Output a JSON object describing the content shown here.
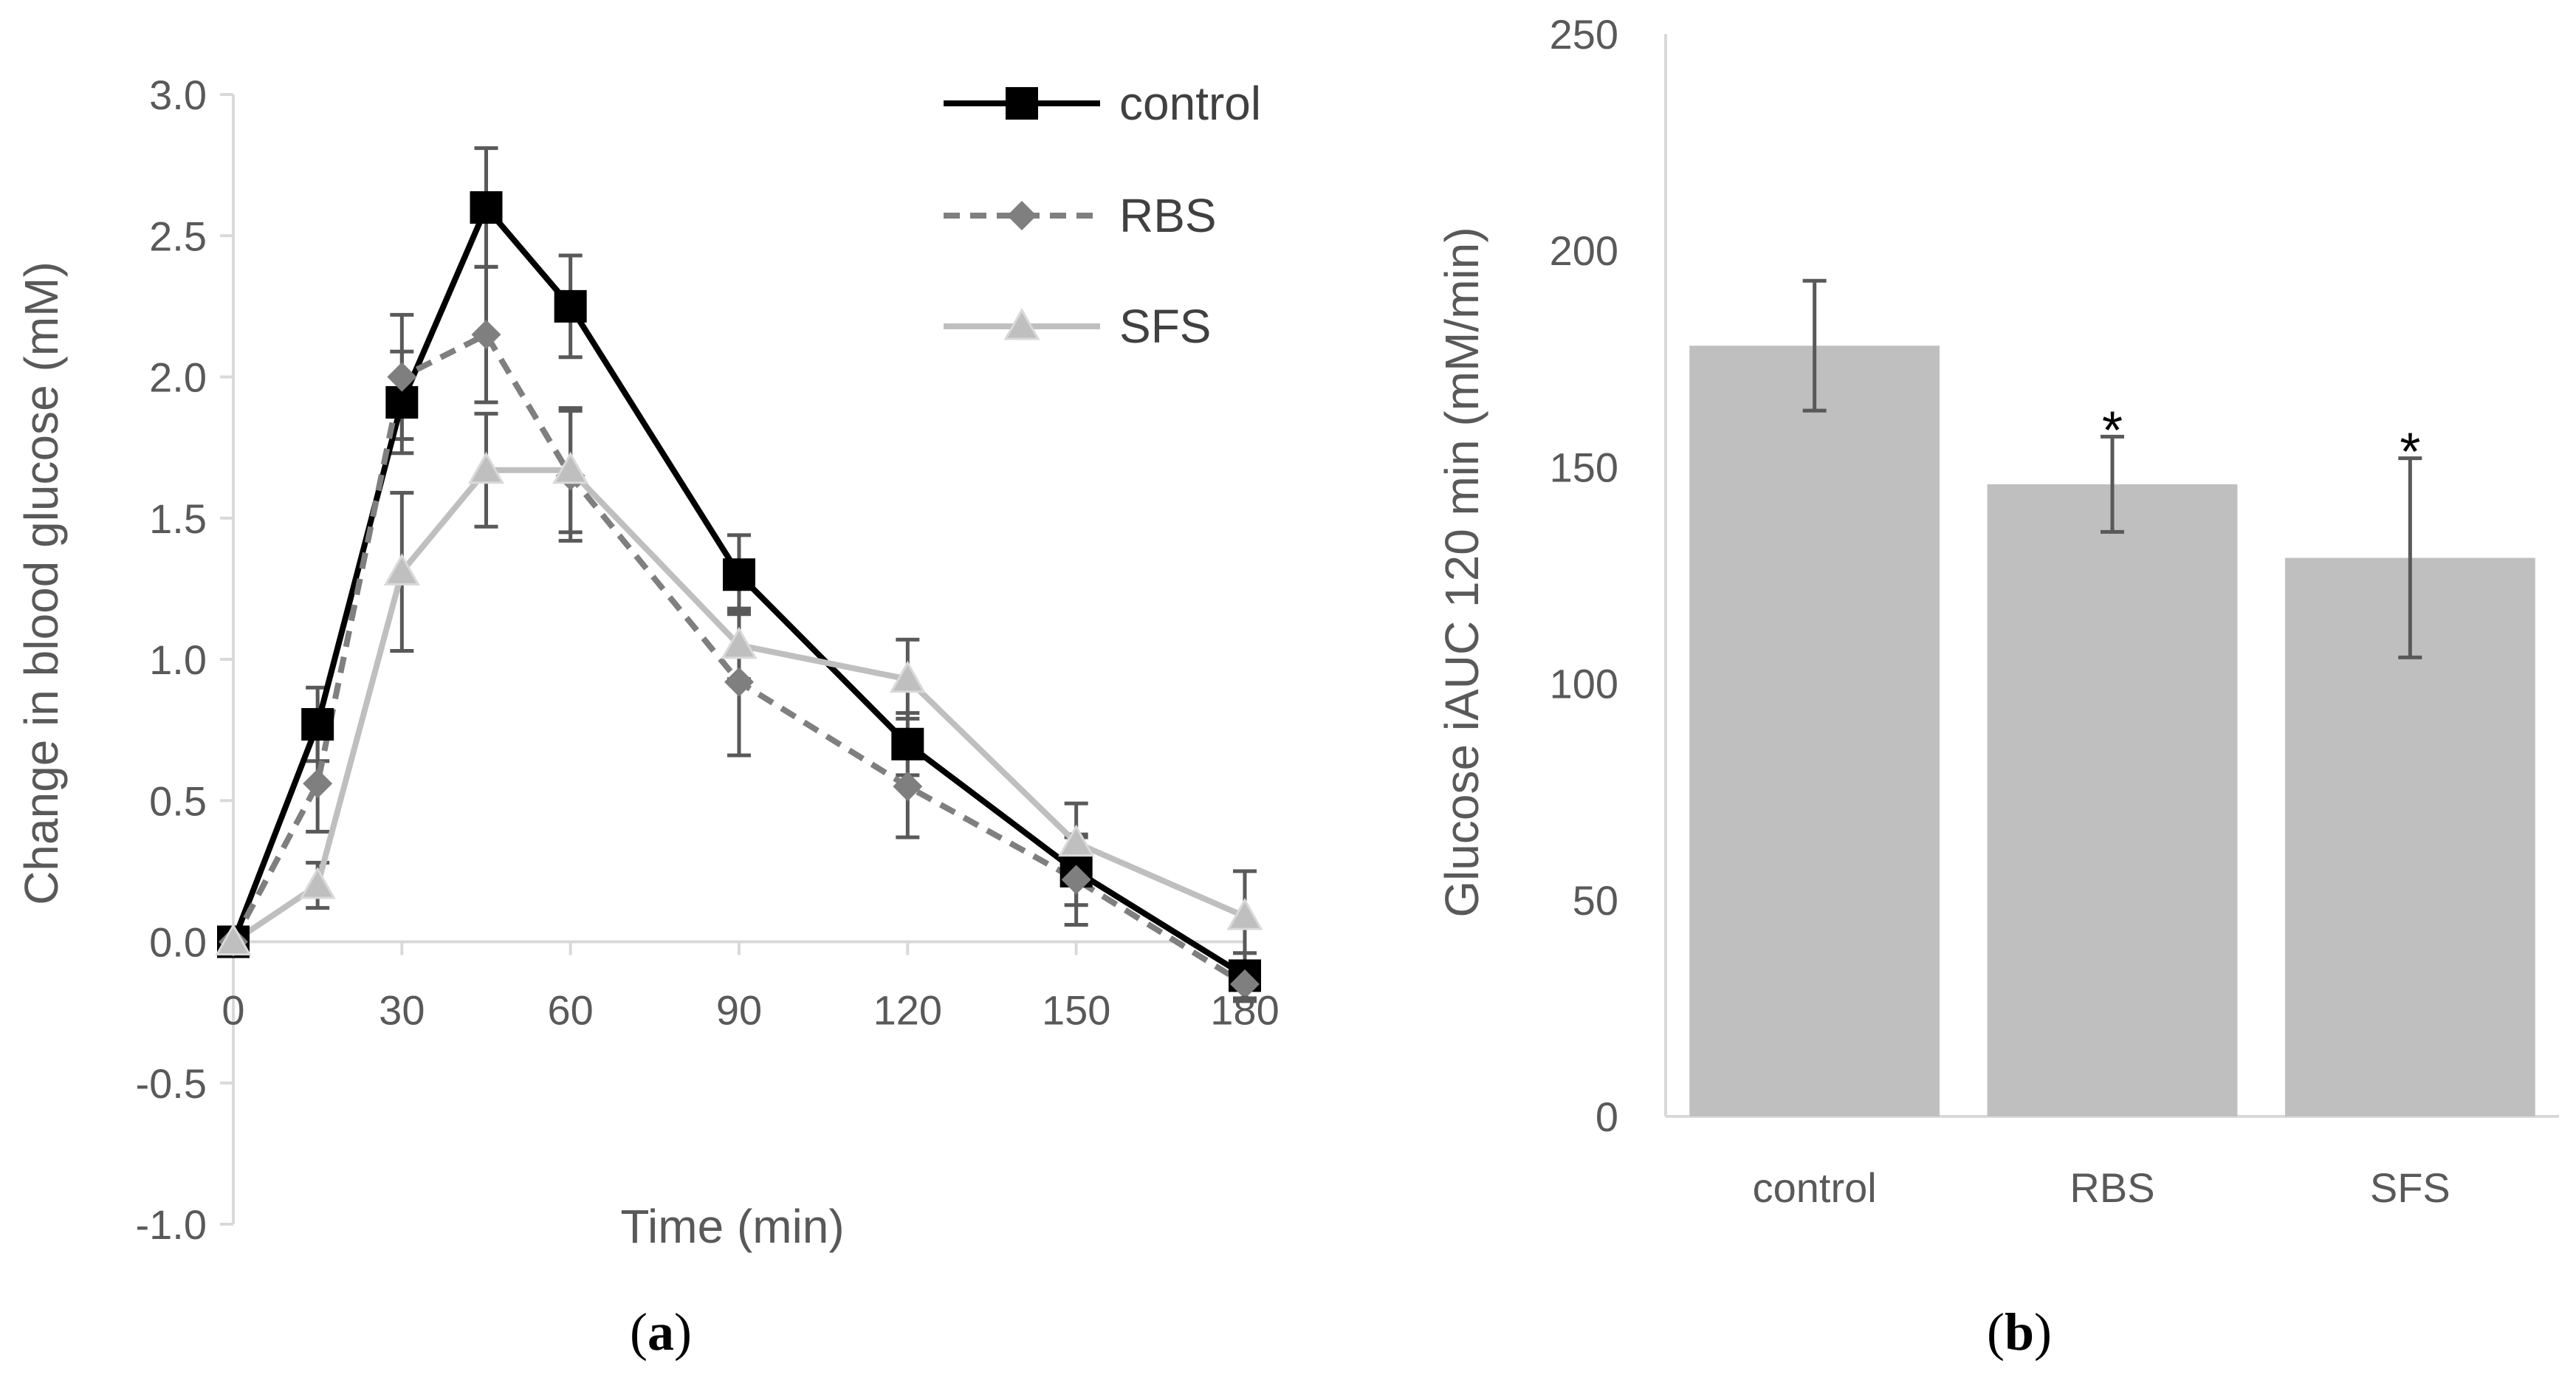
{
  "chart_data": [
    {
      "type": "line",
      "panel_label_prefix": "(",
      "panel_label": "a",
      "panel_label_suffix": ")",
      "xlabel": "Time (min)",
      "ylabel": "Change in blood glucose (mM)",
      "xlim": [
        0,
        180
      ],
      "ylim": [
        -1.0,
        3.0
      ],
      "xticks": [
        0,
        30,
        60,
        90,
        120,
        150,
        180
      ],
      "xtick_labels": [
        "0",
        "30",
        "60",
        "90",
        "120",
        "150",
        "180"
      ],
      "yticks": [
        3.0,
        2.5,
        2.0,
        1.5,
        1.0,
        0.5,
        0.0,
        -0.5,
        -1.0
      ],
      "ytick_labels": [
        "3.0",
        "2.5",
        "2.0",
        "1.5",
        "1.0",
        "0.5",
        "0.0",
        "-0.5",
        "-1.0"
      ],
      "legend_position": "top-right",
      "x": [
        0,
        15,
        30,
        45,
        60,
        90,
        120,
        150,
        180
      ],
      "series": [
        {
          "name": "control",
          "color": "#000000",
          "marker": "square",
          "dash": "solid",
          "values": [
            0.0,
            0.77,
            1.91,
            2.6,
            2.25,
            1.3,
            0.7,
            0.25,
            -0.12
          ],
          "errors": [
            0.0,
            0.13,
            0.18,
            0.21,
            0.18,
            0.14,
            0.11,
            0.12,
            0.08
          ]
        },
        {
          "name": "RBS",
          "color": "#7f7f7f",
          "marker": "diamond",
          "dash": "dashed",
          "values": [
            0.0,
            0.56,
            2.0,
            2.15,
            1.65,
            0.92,
            0.55,
            0.22,
            -0.15
          ],
          "errors": [
            0.0,
            0.17,
            0.22,
            0.24,
            0.23,
            0.26,
            0.18,
            0.16,
            0.06
          ]
        },
        {
          "name": "SFS",
          "color": "#bfbfbf",
          "marker": "triangle",
          "dash": "solid",
          "values": [
            0.0,
            0.2,
            1.31,
            1.67,
            1.67,
            1.05,
            0.93,
            0.35,
            0.09
          ],
          "errors": [
            0.0,
            0.08,
            0.28,
            0.2,
            0.22,
            0.12,
            0.14,
            0.14,
            0.16
          ]
        }
      ]
    },
    {
      "type": "bar",
      "panel_label_prefix": "(",
      "panel_label": "b",
      "panel_label_suffix": ")",
      "xlabel": "",
      "ylabel": "Glucose iAUC 120 min (mM/min)",
      "ylim": [
        0,
        250
      ],
      "yticks": [
        250,
        200,
        150,
        100,
        50,
        0
      ],
      "ytick_labels": [
        "250",
        "200",
        "150",
        "100",
        "50",
        "0"
      ],
      "categories": [
        "control",
        "RBS",
        "SFS"
      ],
      "values": [
        178,
        146,
        129
      ],
      "errors": [
        15,
        11,
        23
      ],
      "significance": [
        "",
        "*",
        "*"
      ],
      "bar_color": "#bfbfbf"
    }
  ]
}
